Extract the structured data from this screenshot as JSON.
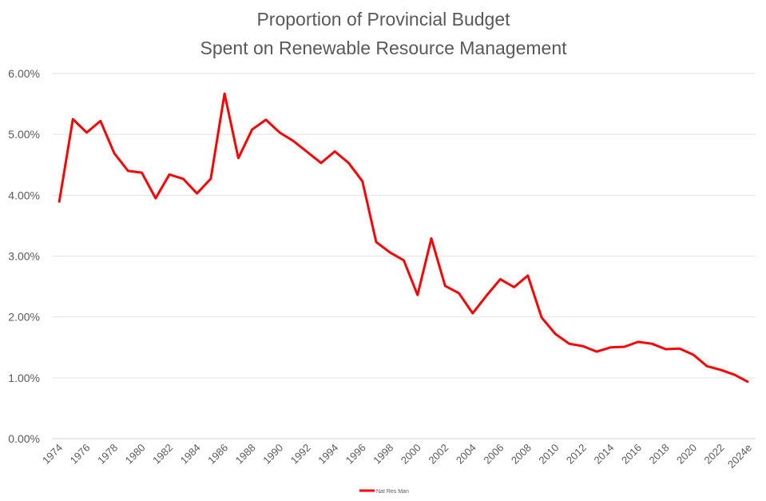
{
  "chart_data": {
    "type": "line",
    "title": [
      "Proportion of Provincial Budget",
      "Spent on Renewable Resource Management"
    ],
    "xlabel": "",
    "ylabel": "",
    "ylim": [
      0,
      6
    ],
    "y_ticks": [
      "0.00%",
      "1.00%",
      "2.00%",
      "3.00%",
      "4.00%",
      "5.00%",
      "6.00%"
    ],
    "grid": "horizontal",
    "legend_position": "bottom",
    "x": [
      "1974",
      "1975",
      "1976",
      "1977",
      "1978",
      "1979",
      "1980",
      "1981",
      "1982",
      "1983",
      "1984",
      "1985",
      "1986",
      "1987",
      "1988",
      "1989",
      "1990",
      "1991",
      "1992",
      "1993",
      "1994",
      "1995",
      "1996",
      "1997",
      "1998",
      "1999",
      "2000",
      "2001",
      "2002",
      "2003",
      "2004",
      "2005",
      "2006",
      "2007",
      "2008",
      "2009",
      "2010",
      "2011",
      "2012",
      "2013",
      "2014",
      "2015",
      "2016",
      "2017",
      "2018",
      "2019",
      "2020",
      "2021",
      "2022",
      "2023",
      "2024e"
    ],
    "x_tick_labels": [
      "1974",
      "1976",
      "1978",
      "1980",
      "1982",
      "1984",
      "1986",
      "1988",
      "1990",
      "1992",
      "1994",
      "1996",
      "1998",
      "2000",
      "2002",
      "2004",
      "2006",
      "2008",
      "2010",
      "2012",
      "2014",
      "2016",
      "2018",
      "2020",
      "2022",
      "2024e"
    ],
    "series": [
      {
        "name": "Nat Res Man",
        "color": "#ff0000",
        "values": [
          3.88,
          5.25,
          5.03,
          5.22,
          4.69,
          4.4,
          4.37,
          3.95,
          4.34,
          4.27,
          4.03,
          4.27,
          5.67,
          4.61,
          5.08,
          5.24,
          5.03,
          4.89,
          4.71,
          4.53,
          4.72,
          4.53,
          4.23,
          3.23,
          3.06,
          2.93,
          2.36,
          3.29,
          2.51,
          2.39,
          2.06,
          2.35,
          2.62,
          2.49,
          2.68,
          1.99,
          1.72,
          1.56,
          1.52,
          1.43,
          1.5,
          1.51,
          1.59,
          1.56,
          1.47,
          1.48,
          1.38,
          1.19,
          1.13,
          1.05,
          0.93
        ]
      }
    ]
  }
}
